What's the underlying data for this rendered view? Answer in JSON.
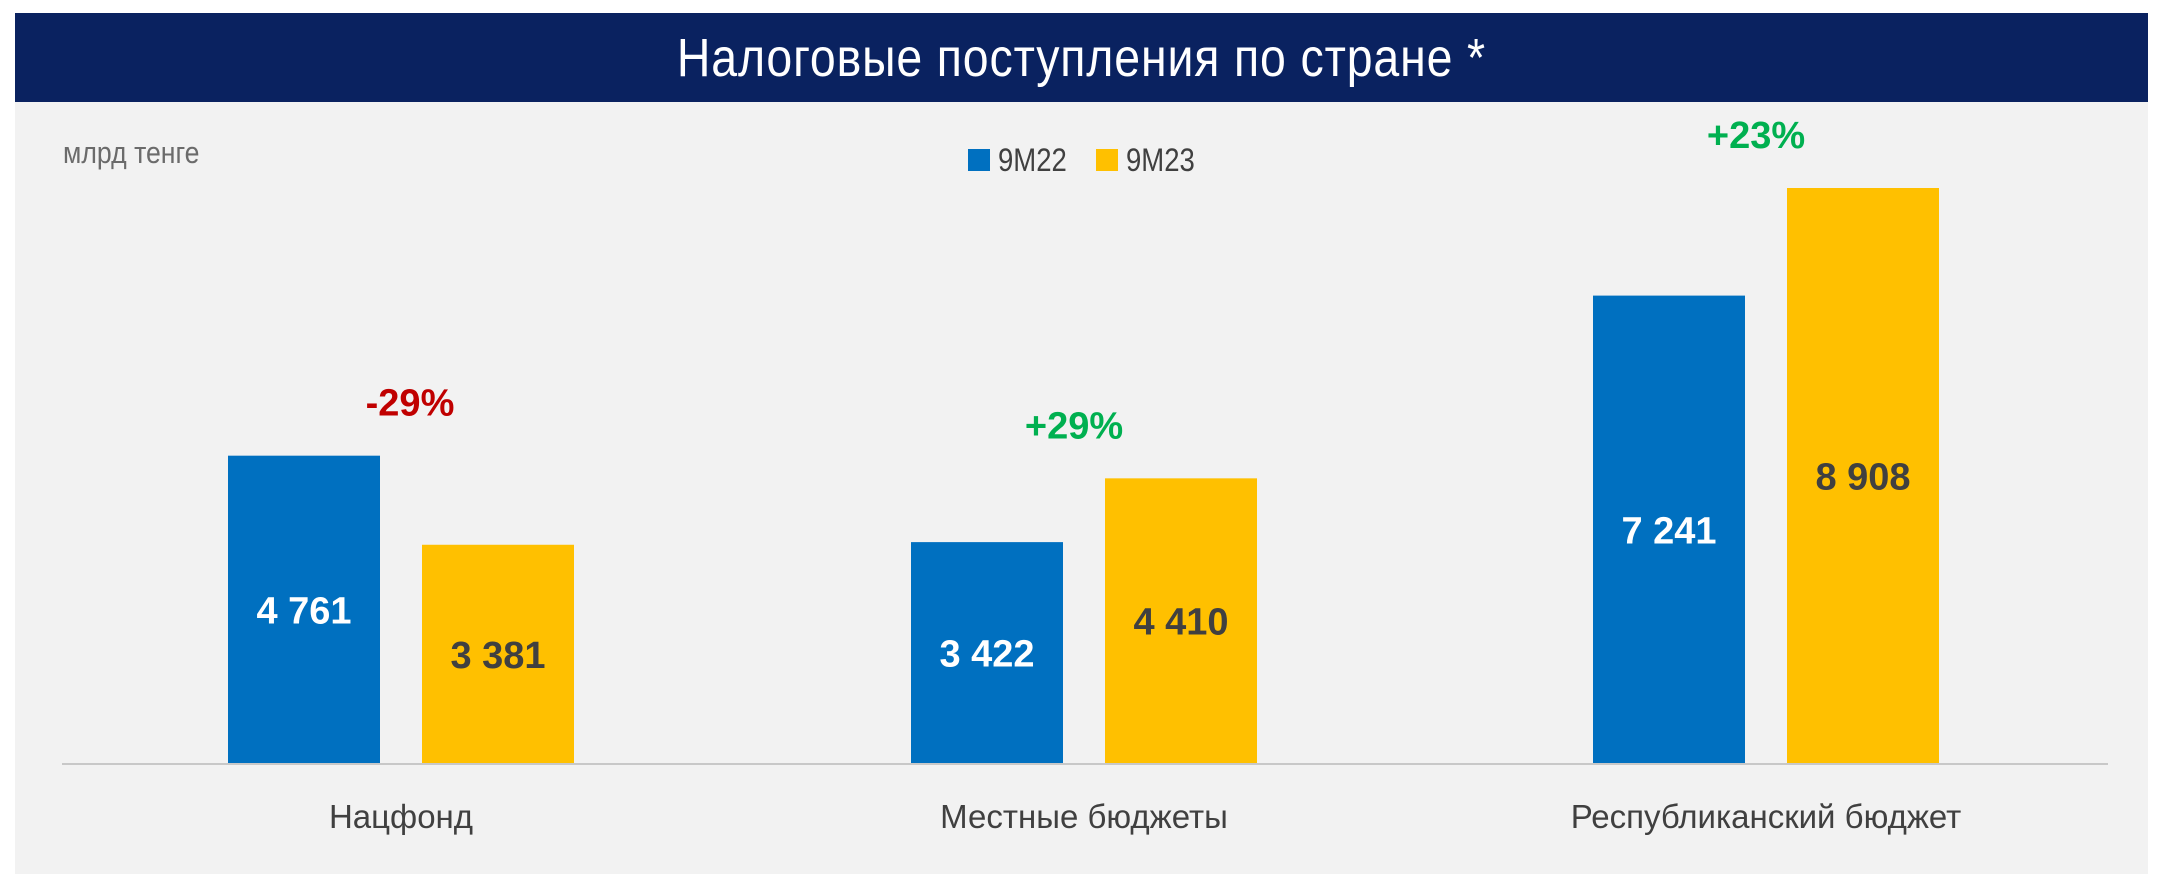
{
  "title": "Налоговые поступления по стране *",
  "unit_label": "млрд тенге",
  "colors": {
    "header_bg": "#0a2260",
    "series_9M22": "#0070c0",
    "series_9M23": "#ffc000",
    "positive": "#00b050",
    "negative": "#c00000"
  },
  "chart_data": {
    "type": "bar",
    "categories": [
      "Нацфонд",
      "Местные бюджеты",
      "Республиканский бюджет"
    ],
    "series": [
      {
        "name": "9M22",
        "values": [
          4761,
          3422,
          7241
        ],
        "labels": [
          "4 761",
          "3 422",
          "7 241"
        ],
        "color": "#0070c0",
        "label_color": "#ffffff"
      },
      {
        "name": "9M23",
        "values": [
          3381,
          4410,
          8908
        ],
        "labels": [
          "3 381",
          "4 410",
          "8 908"
        ],
        "color": "#ffc000",
        "label_color": "#404040"
      }
    ],
    "changes": [
      "-29%",
      "+29%",
      "+23%"
    ],
    "change_colors": [
      "#c00000",
      "#00b050",
      "#00b050"
    ],
    "ylim": [
      0,
      8908
    ],
    "legend_position": "top-center",
    "grid": false
  }
}
